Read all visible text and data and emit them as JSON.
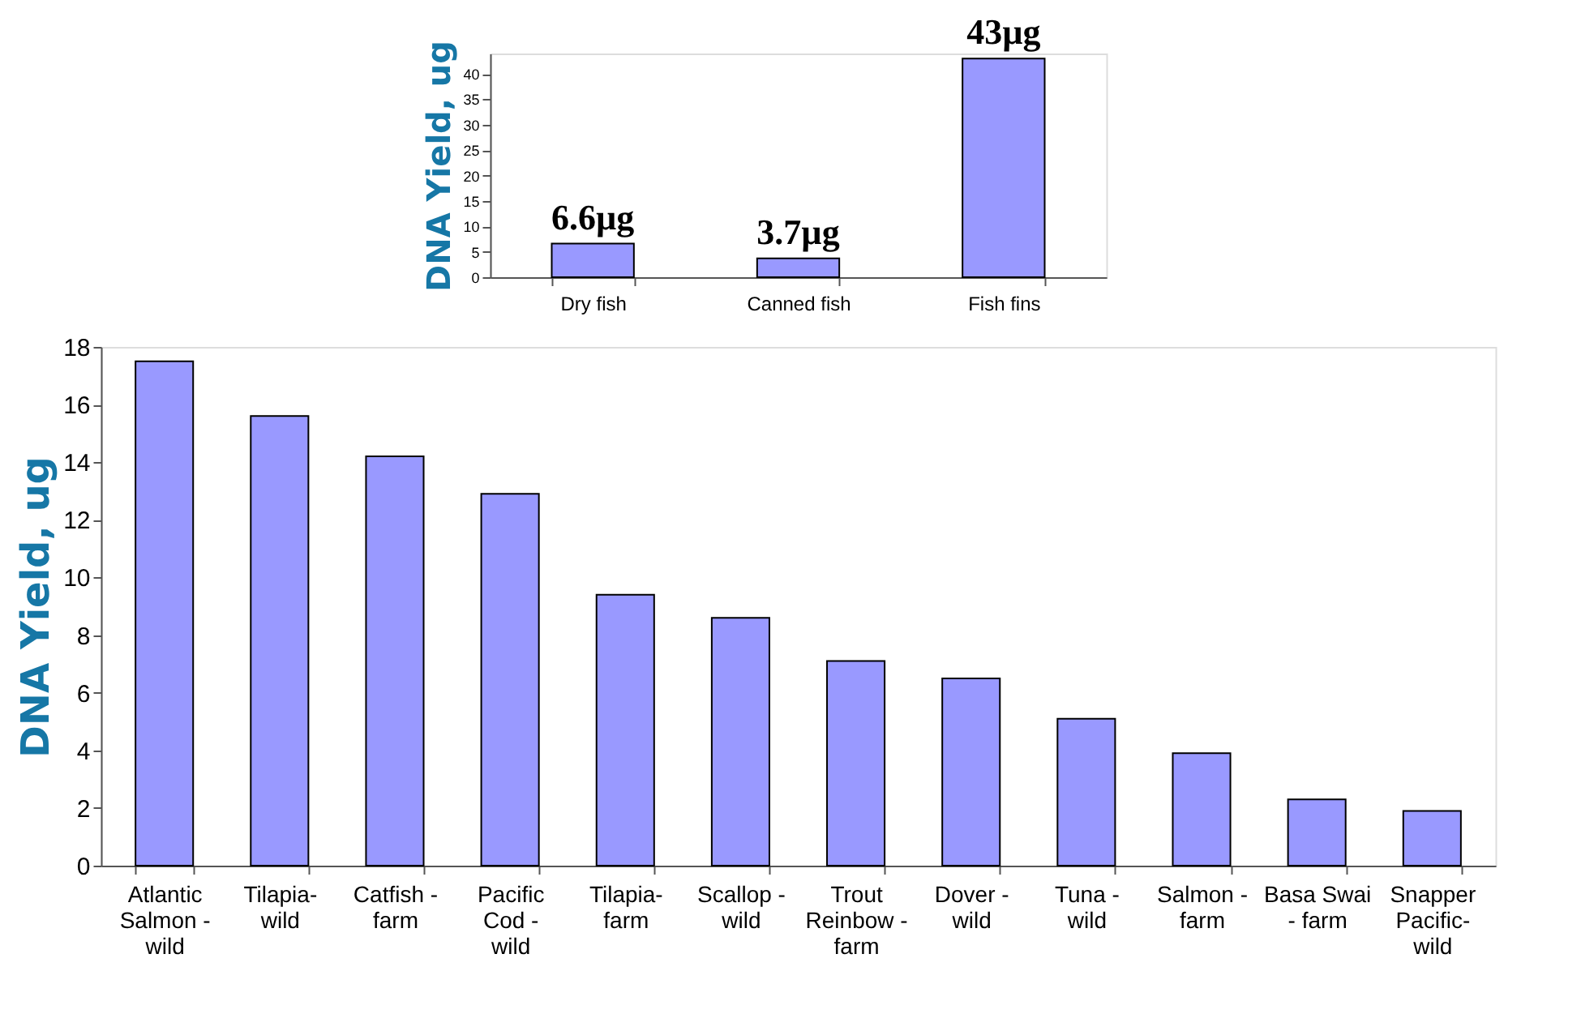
{
  "chart_data": [
    {
      "type": "bar",
      "ylabel": "DNA Yield, ug",
      "categories": [
        "Atlantic Salmon - wild",
        "Tilapia- wild",
        "Catfish - farm",
        "Pacific Cod - wild",
        "Tilapia- farm",
        "Scallop - wild",
        "Trout Reinbow - farm",
        "Dover - wild",
        "Tuna - wild",
        "Salmon - farm",
        "Basa Swai - farm",
        "Snapper Pacific- wild"
      ],
      "values": [
        17.5,
        15.6,
        14.2,
        12.9,
        9.4,
        8.6,
        7.1,
        6.5,
        5.1,
        3.9,
        2.3,
        1.9
      ],
      "color": "#9999ff",
      "ylim": [
        0,
        18
      ],
      "yticks": [
        0,
        2,
        4,
        6,
        8,
        10,
        12,
        14,
        16,
        18
      ],
      "grid": false
    },
    {
      "type": "bar",
      "ylabel": "DNA Yield, ug",
      "categories": [
        "Dry fish",
        "Canned  fish",
        "Fish fins"
      ],
      "values": [
        6.6,
        3.7,
        43
      ],
      "value_labels": [
        "6.6µg",
        "3.7µg",
        "43µg"
      ],
      "color": "#9999ff",
      "ylim": [
        0,
        44
      ],
      "yticks": [
        0,
        5,
        10,
        15,
        20,
        25,
        30,
        35,
        40
      ],
      "grid": false
    }
  ]
}
